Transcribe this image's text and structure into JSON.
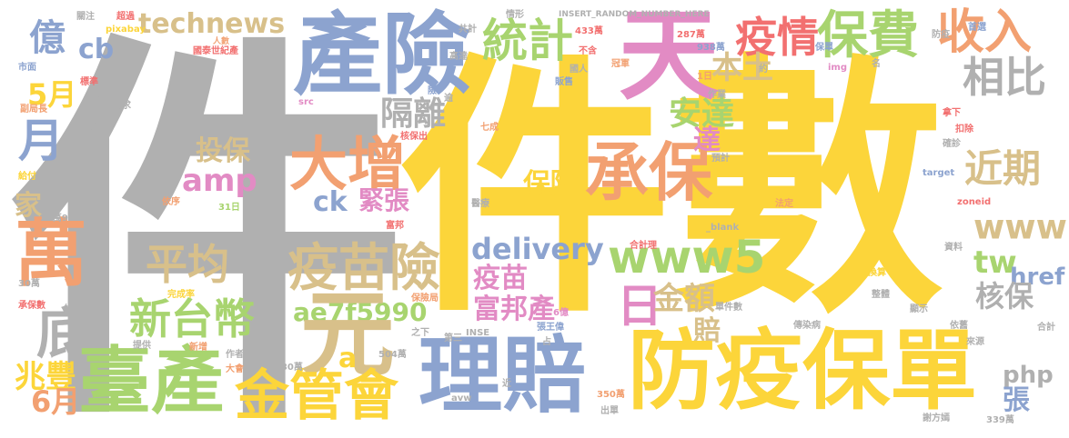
{
  "palette": {
    "gray": "#b0b0b0",
    "yellow": "#fcd53a",
    "blue": "#8ca3cf",
    "orange": "#f2a071",
    "tan": "#d8c08a",
    "pink": "#e28bc4",
    "green": "#a8d46f",
    "red": "#f27070"
  },
  "words": [
    {
      "text": "件"
    },
    {
      "text": "件數"
    },
    {
      "text": "產險"
    },
    {
      "text": "天"
    },
    {
      "text": "保費"
    },
    {
      "text": "收入"
    },
    {
      "text": "統計"
    },
    {
      "text": "疫情"
    },
    {
      "text": "相比"
    },
    {
      "text": "technews"
    },
    {
      "text": "億"
    },
    {
      "text": "cb"
    },
    {
      "text": "5月"
    },
    {
      "text": "月"
    },
    {
      "text": "大增"
    },
    {
      "text": "承保"
    },
    {
      "text": "本土"
    },
    {
      "text": "隔離"
    },
    {
      "text": "安達"
    },
    {
      "text": "近期"
    },
    {
      "text": "達"
    },
    {
      "text": "投保"
    },
    {
      "text": "amp"
    },
    {
      "text": "保障"
    },
    {
      "text": "緊張"
    },
    {
      "text": "ck"
    },
    {
      "text": "家"
    },
    {
      "text": "萬"
    },
    {
      "text": "平均"
    },
    {
      "text": "疫苗險"
    },
    {
      "text": "www5"
    },
    {
      "text": "www"
    },
    {
      "text": "delivery"
    },
    {
      "text": "疫苗"
    },
    {
      "text": "tw"
    },
    {
      "text": "href"
    },
    {
      "text": "日"
    },
    {
      "text": "金額"
    },
    {
      "text": "富邦產"
    },
    {
      "text": "核保"
    },
    {
      "text": "賠"
    },
    {
      "text": "新台幣"
    },
    {
      "text": "ae7f5990"
    },
    {
      "text": "元"
    },
    {
      "text": "底"
    },
    {
      "text": "php"
    },
    {
      "text": "張"
    },
    {
      "text": "兆豐"
    },
    {
      "text": "a"
    },
    {
      "text": "6月"
    },
    {
      "text": "臺產"
    },
    {
      "text": "金管會"
    },
    {
      "text": "理賠"
    },
    {
      "text": "防疫保單"
    },
    {
      "text": "關注"
    },
    {
      "text": "超過"
    },
    {
      "text": "pixabay"
    },
    {
      "text": "國泰世紀產"
    },
    {
      "text": "人數"
    },
    {
      "text": "市面"
    },
    {
      "text": "標準"
    },
    {
      "text": "獲"
    },
    {
      "text": "副局長"
    },
    {
      "text": "需求"
    },
    {
      "text": "升溫"
    },
    {
      "text": "src"
    },
    {
      "text": "險"
    },
    {
      "text": "逾"
    },
    {
      "text": "核保出"
    },
    {
      "text": "七成"
    },
    {
      "text": "情形"
    },
    {
      "text": "INSERT_RANDOM_NUMBER_HERE"
    },
    {
      "text": "共計"
    },
    {
      "text": "高達"
    },
    {
      "text": "433萬"
    },
    {
      "text": "287萬"
    },
    {
      "text": "不含"
    },
    {
      "text": "938萬"
    },
    {
      "text": "冠軍"
    },
    {
      "text": "防疫"
    },
    {
      "text": "首選"
    },
    {
      "text": "國人"
    },
    {
      "text": "販售"
    },
    {
      "text": "img"
    },
    {
      "text": "保單"
    },
    {
      "text": "名"
    },
    {
      "text": "1日"
    },
    {
      "text": "作業"
    },
    {
      "text": "約"
    },
    {
      "text": "預計"
    },
    {
      "text": "確診"
    },
    {
      "text": "扣除"
    },
    {
      "text": "拿下"
    },
    {
      "text": "給付"
    },
    {
      "text": "銷售"
    },
    {
      "text": "target"
    },
    {
      "text": "zoneid"
    },
    {
      "text": "依序"
    },
    {
      "text": "31日"
    },
    {
      "text": "30萬9"
    },
    {
      "text": "醫療"
    },
    {
      "text": "法定"
    },
    {
      "text": "富邦"
    },
    {
      "text": "_blank"
    },
    {
      "text": "合計理"
    },
    {
      "text": "資料"
    },
    {
      "text": "30萬"
    },
    {
      "text": "換算"
    },
    {
      "text": "承保數"
    },
    {
      "text": "約理"
    },
    {
      "text": "完成率"
    },
    {
      "text": "保險局"
    },
    {
      "text": "6億"
    },
    {
      "text": "單件數"
    },
    {
      "text": "整體"
    },
    {
      "text": "顯示"
    },
    {
      "text": "合計"
    },
    {
      "text": "之下"
    },
    {
      "text": "第三"
    },
    {
      "text": "INSE"
    },
    {
      "text": "張王偉"
    },
    {
      "text": "傳染病"
    },
    {
      "text": "依舊"
    },
    {
      "text": "來源"
    },
    {
      "text": "提供"
    },
    {
      "text": "新增"
    },
    {
      "text": "作者"
    },
    {
      "text": "大會"
    },
    {
      "text": "430萬"
    },
    {
      "text": "504萬"
    },
    {
      "text": "近"
    },
    {
      "text": "350萬"
    },
    {
      "text": "出單"
    },
    {
      "text": "謝方嫣"
    },
    {
      "text": "339萬"
    },
    {
      "text": "avw"
    },
    {
      "text": "占"
    }
  ]
}
